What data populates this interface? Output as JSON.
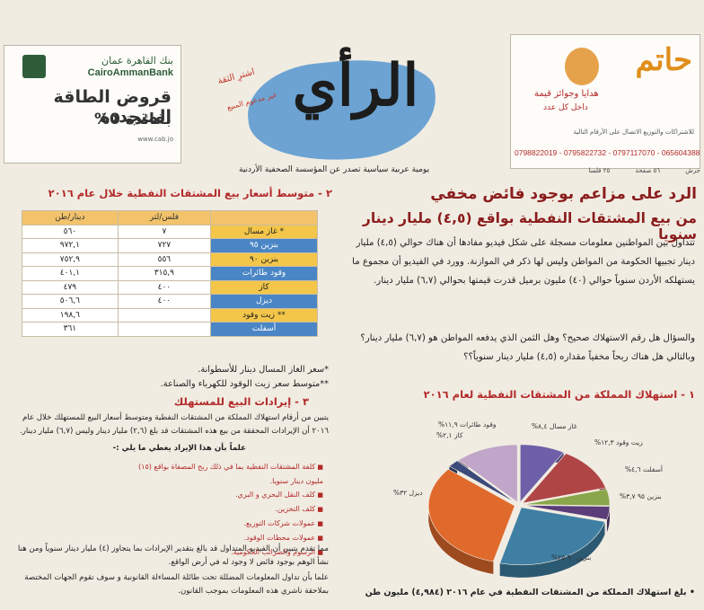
{
  "masthead": {
    "bank": {
      "name_ar": "بنك القاهرة عمان",
      "name_en": "CairoAmmanBank",
      "ad_headline": "قروض الطاقة المتجددة",
      "ad_rate": "بفائدة 0%",
      "fine_print": "www.cab.jo"
    },
    "logo": "الرأي",
    "slogan_1": "اشترِ الثقة",
    "slogan_2": "غير مدعوم المبيع",
    "tagline": "يومية عربية سياسية تصدر عن المؤسسة الصحفية الأردنية",
    "hatem": {
      "title": "حاتم",
      "gift_line_1": "هدايا وجوائز قيمة",
      "gift_line_2": "داخل كل عدد",
      "subscription_text": "للاشتراكات والتوزيع الاتصال على الأرقام التالية",
      "phones": "0798822019 - 0795822732 - 0797117070 - 065604388"
    },
    "dateline": [
      "جرش",
      "٥٦ صفحة",
      "٢٥ قلسا"
    ]
  },
  "article_right": {
    "headline_1": "الرد على مزاعم بوجود فائض مخفي",
    "headline_2": "من بيع المشتقات النفطية بواقع (٤,٥) مليار دينار سنويا",
    "paragraph_1": "تتداول بين المواطنين معلومات مسجلة على شكل فيديو مفادها أن هناك حوالي (٤,٥) مليار دينار تجبيها الحكومة من المواطن وليس لها ذكر في الموازنة. وورد في الفيديو أن مجموع ما يستهلكه الأردن سنوياً حوالي (٤٠) مليون برميل قدرت قيمتها بحوالي (٦,٧) مليار دينار.",
    "paragraph_2": "والسؤال هل رقم الاستهلاك صحيح؟ وهل الثمن الذي يدفعه المواطن هو (٦,٧) مليار دينار؟ وبالتالي هل هناك ربحاً مخفياً مقداره (٤,٥) مليار دينار سنوياً؟؟",
    "section_1_title": "١ - استهلاك المملكة من المشتقات النفطية لعام ٢٠١٦",
    "footnote": "• بلغ استهلاك المملكة من المشتقات النفطية في عام ٢٠١٦ (٤,٩٨٤) مليون طن"
  },
  "chart_data": {
    "type": "pie",
    "title": "١ - استهلاك المملكة من المشتقات النفطية لعام ٢٠١٦",
    "slices": [
      {
        "label": "غاز مسال",
        "value": 8.4,
        "display": "غاز مسال ٨,٤%",
        "color": "#6d5fa8"
      },
      {
        "label": "زيت وقود",
        "value": 12.3,
        "display": "زيت وقود ١٢,٣%",
        "color": "#b04545"
      },
      {
        "label": "أسفلت",
        "value": 4.6,
        "display": "أسفلت ٤,٦%",
        "color": "#8aa64a"
      },
      {
        "label": "بنزين ٩٥",
        "value": 3.7,
        "display": "بنزين ٩٥ ٣,٧%",
        "color": "#5b3d7a"
      },
      {
        "label": "بنزين ٩٠",
        "value": 25,
        "display": "بنزين ٩٠ ٢٥%",
        "color": "#3f7fa3"
      },
      {
        "label": "ديزل",
        "value": 32,
        "display": "ديزل ٣٢%",
        "color": "#e06a2c"
      },
      {
        "label": "كاز",
        "value": 2.1,
        "display": "كاز ٢,١%",
        "color": "#3a4a7a"
      },
      {
        "label": "وقود طائرات",
        "value": 11.9,
        "display": "وقود طائرات ١١,٩%",
        "color": "#c0a6c8"
      }
    ]
  },
  "article_left": {
    "table_title": "٢ - متوسط أسعار بيع المشتقات النفطية خلال عام ٢٠١٦",
    "table": {
      "headers": [
        "",
        "فلس/لتر",
        "دينار/طن"
      ],
      "rows": [
        {
          "product": "غاز مسال *",
          "fils": "٧",
          "dinar": "٥٦٠",
          "style": "y"
        },
        {
          "product": "بنزين ٩٥",
          "fils": "٧٢٧",
          "dinar": "٩٧٢,١",
          "style": "b"
        },
        {
          "product": "بنزين ٩٠",
          "fils": "٥٥٦",
          "dinar": "٧٥٢,٩",
          "style": "y"
        },
        {
          "product": "وقود طائرات",
          "fils": "٣١٥,٩",
          "dinar": "٤٠١,١",
          "style": "b"
        },
        {
          "product": "كاز",
          "fils": "٤٠٠",
          "dinar": "٤٧٩",
          "style": "y"
        },
        {
          "product": "ديزل",
          "fils": "٤٠٠",
          "dinar": "٥٠٦,٦",
          "style": "b"
        },
        {
          "product": "زيت وقود **",
          "fils": "",
          "dinar": "١٩٨,٦",
          "style": "y"
        },
        {
          "product": "أسفلت",
          "fils": "",
          "dinar": "٣٦١",
          "style": "b"
        }
      ]
    },
    "note_1": "*سعر الغاز المسال دينار للأسطوانة.",
    "note_2": "**متوسط سعر زيت الوقود للكهرباء والصناعة.",
    "section_3_title": "٣ - إيرادات البيع للمستهلك",
    "section_3_body": "يتبين من أرقام استهلاك المملكة من المشتقات النفطية ومتوسط أسعار البيع للمستهلك خلال عام ٢٠١٦ أن الإيرادات المحققة من بيع هذه المشتقات قد بلغ (٢,٦) مليار دينار وليس (٦,٧) مليار دينار.",
    "section_3_lead": "علماً بأن هذا الإيراد يغطي ما يلي :-",
    "bullets": [
      "كلفة المشتقات النفطية بما في ذلك ربح المصفاة بواقع (١٥) مليون دينار سنويا.",
      "كلف النقل البحري و البري.",
      "كلف التخزين.",
      "عمولات شركات التوزيع.",
      "عمولات محطات الوقود.",
      "الرسوم والضرائب الحكومية."
    ],
    "closing_1": "مما تقدم يتبين أن الفيديو المتداول قد بالغ بتقدير الإيرادات بما يتجاوز (٤) مليار دينار سنوياً ومن هنا نشأ الوهم بوجود فائض لا وجود له في أرض الواقع.",
    "closing_2": "علما بأن تداول المعلومات المضللة تحت طائلة المساءلة القانونية و سوف تقوم الجهات المختصة بملاحقة ناشري هذه المعلومات بموجب القانون."
  }
}
